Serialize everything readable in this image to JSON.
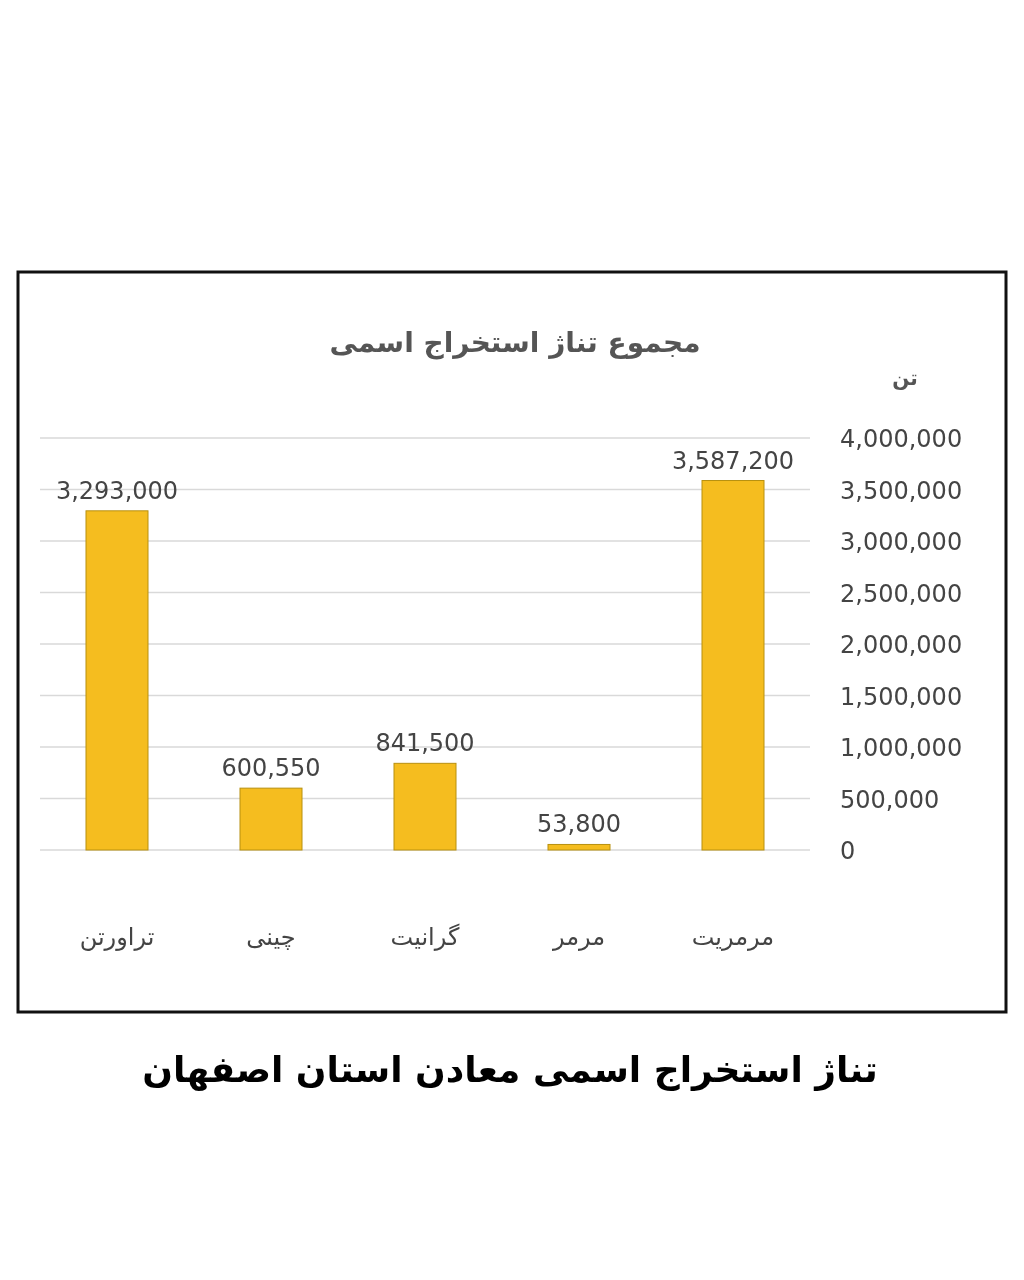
{
  "chart_data": {
    "type": "bar",
    "title": "مجموع تناژ استخراج اسمی",
    "ylabel": "تن",
    "categories": [
      "تراورتن",
      "چینی",
      "گرانیت",
      "مرمر",
      "مرمریت"
    ],
    "values": [
      3293000,
      600550,
      841500,
      53800,
      3587200
    ],
    "value_labels": [
      "3,293,000",
      "600,550",
      "841,500",
      "53,800",
      "3,587,200"
    ],
    "color": "#f5bd1f",
    "ylim": [
      0,
      4000000
    ],
    "yticks": [
      {
        "value": 0,
        "label": "0"
      },
      {
        "value": 500000,
        "label": "500,000"
      },
      {
        "value": 1000000,
        "label": "1,000,000"
      },
      {
        "value": 1500000,
        "label": "1,500,000"
      },
      {
        "value": 2000000,
        "label": "2,000,000"
      },
      {
        "value": 2500000,
        "label": "2,500,000"
      },
      {
        "value": 3000000,
        "label": "3,000,000"
      },
      {
        "value": 3500000,
        "label": "3,500,000"
      },
      {
        "value": 4000000,
        "label": "4,000,000"
      }
    ],
    "grid": "y",
    "annotations": [
      "تناژ استخراج اسمی معادن استان اصفهان"
    ]
  }
}
